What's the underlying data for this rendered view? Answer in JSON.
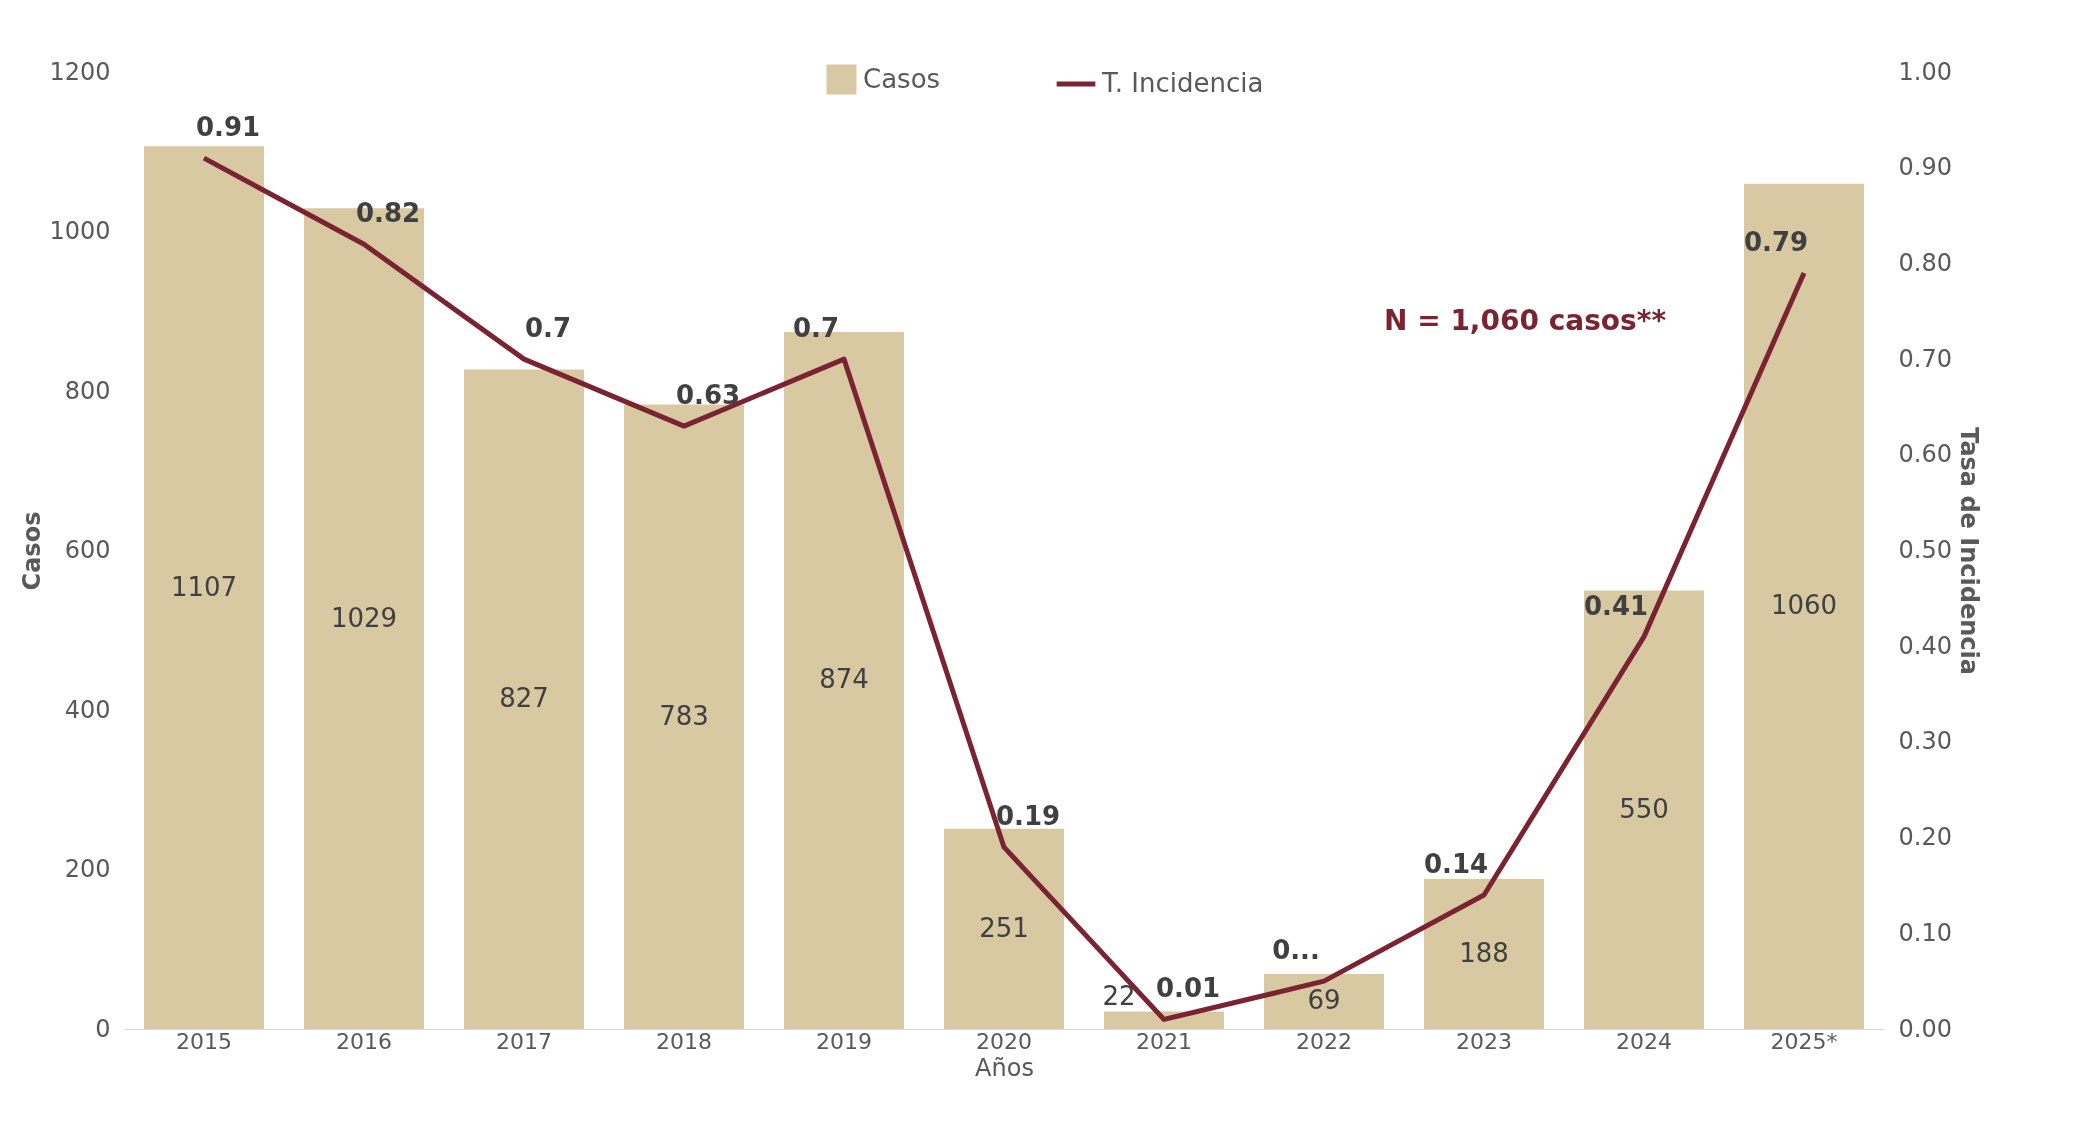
{
  "chart_data": {
    "type": "bar",
    "xlabel": "Años",
    "ylabel": "Casos",
    "y2label": "Tasa de Incidencia",
    "categories": [
      "2015",
      "2016",
      "2017",
      "2018",
      "2019",
      "2020",
      "2021",
      "2022",
      "2023",
      "2024",
      "2025*"
    ],
    "series": [
      {
        "name": "Casos",
        "color": "#d9c9a3",
        "values": [
          1107,
          1029,
          827,
          783,
          874,
          251,
          22,
          69,
          188,
          550,
          1060
        ],
        "value_labels": [
          "1107",
          "1029",
          "827",
          "783",
          "874",
          "251",
          "22",
          "69",
          "188",
          "550",
          "1060"
        ]
      },
      {
        "name": "T. Incidencia",
        "type": "line",
        "axis": "y2",
        "color": "#7b2431",
        "values": [
          0.91,
          0.82,
          0.7,
          0.63,
          0.7,
          0.19,
          0.01,
          0.05,
          0.14,
          0.41,
          0.79
        ],
        "value_labels": [
          "0.91",
          "0.82",
          "0.7",
          "0.63",
          "0.7",
          "0.19",
          "0.01",
          "0...",
          "0.14",
          "0.41",
          "0.79"
        ]
      }
    ],
    "ylim": [
      0,
      1200
    ],
    "yticks": [
      0,
      200,
      400,
      600,
      800,
      {
        "value": 1000,
        "label": "1000"
      },
      {
        "value": 1200,
        "label": "1200"
      }
    ],
    "y2lim": [
      0,
      1
    ],
    "y2ticks": [
      {
        "value": 0,
        "label": "0.00"
      },
      {
        "value": 0.1,
        "label": "0.10"
      },
      {
        "value": 0.2,
        "label": "0.20"
      },
      {
        "value": 0.3,
        "label": "0.30"
      },
      {
        "value": 0.4,
        "label": "0.40"
      },
      {
        "value": 0.5,
        "label": "0.50"
      },
      {
        "value": 0.6,
        "label": "0.60"
      },
      {
        "value": 0.7,
        "label": "0.70"
      },
      {
        "value": 0.8,
        "label": "0.80"
      },
      {
        "value": 0.9,
        "label": "0.90"
      },
      {
        "value": 1,
        "label": "1.00"
      }
    ],
    "annotations": [
      "N = 1,060 casos**"
    ],
    "grid": false,
    "legend": "top",
    "marker": "none",
    "line_style": "solid"
  }
}
